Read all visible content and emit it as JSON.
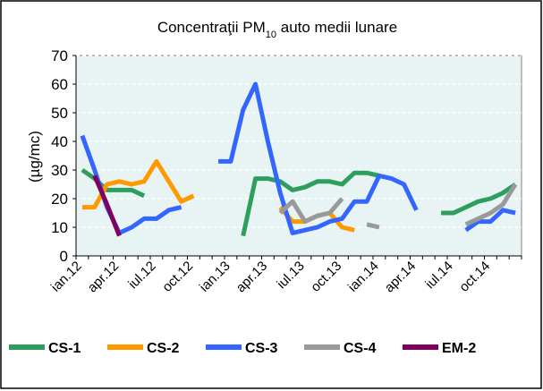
{
  "chart_data": {
    "type": "line",
    "title_parts": [
      "Concentraţii PM",
      "10",
      " auto medii lunare"
    ],
    "y_label": "(µg/mc)",
    "categories": [
      "ian.12",
      null,
      null,
      "apr.12",
      null,
      null,
      "iul.12",
      null,
      null,
      "oct.12",
      null,
      null,
      "ian.13",
      null,
      null,
      "apr.13",
      null,
      null,
      "iul.13",
      null,
      null,
      "oct.13",
      null,
      null,
      "ian.14",
      null,
      null,
      "apr.14",
      null,
      null,
      "iul.14",
      null,
      null,
      "oct.14",
      null,
      null
    ],
    "ylim": [
      0,
      70
    ],
    "yticks": [
      0,
      10,
      20,
      30,
      40,
      50,
      60,
      70
    ],
    "series": [
      {
        "name": "CS-1",
        "color": "#2e9e5e",
        "values": [
          30,
          27,
          23,
          23,
          23,
          21,
          null,
          null,
          null,
          null,
          null,
          null,
          null,
          7,
          27,
          27,
          26,
          23,
          24,
          26,
          26,
          25,
          29,
          29,
          28,
          null,
          null,
          null,
          null,
          15,
          15,
          17,
          19,
          20,
          22,
          25
        ]
      },
      {
        "name": "CS-2",
        "color": "#ff9900",
        "values": [
          17,
          17,
          25,
          26,
          25,
          26,
          33,
          26,
          19,
          21,
          null,
          null,
          null,
          null,
          null,
          null,
          17,
          12,
          12,
          14,
          15,
          10,
          9,
          null,
          null,
          null,
          null,
          null,
          null,
          null,
          null,
          null,
          null,
          null,
          null,
          null
        ]
      },
      {
        "name": "CS-3",
        "color": "#3366ff",
        "values": [
          42,
          30,
          17,
          8,
          10,
          13,
          13,
          16,
          17,
          null,
          null,
          33,
          33,
          51,
          60,
          40,
          22,
          8,
          9,
          10,
          12,
          13,
          19,
          19,
          28,
          27,
          25,
          16,
          null,
          null,
          null,
          9,
          12,
          12,
          16,
          15
        ]
      },
      {
        "name": "CS-4",
        "color": "#999999",
        "values": [
          null,
          null,
          null,
          null,
          null,
          null,
          null,
          null,
          null,
          null,
          null,
          null,
          null,
          null,
          null,
          null,
          15,
          19,
          12,
          14,
          15,
          20,
          null,
          11,
          10,
          null,
          null,
          null,
          null,
          null,
          null,
          11,
          13,
          15,
          18,
          25
        ]
      },
      {
        "name": "EM-2",
        "color": "#800060",
        "values": [
          null,
          28,
          18,
          7,
          null,
          null,
          null,
          null,
          null,
          null,
          null,
          null,
          null,
          null,
          null,
          null,
          null,
          null,
          null,
          null,
          null,
          null,
          null,
          null,
          null,
          null,
          null,
          null,
          null,
          null,
          null,
          null,
          null,
          null,
          null,
          null
        ]
      }
    ]
  }
}
